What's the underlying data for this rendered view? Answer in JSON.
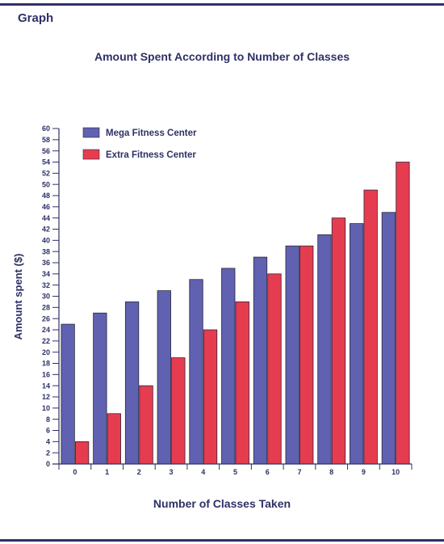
{
  "page": {
    "heading": "Graph"
  },
  "chart_data": {
    "type": "bar",
    "title": "Amount Spent According to Number of Classes",
    "xlabel": "Number of Classes Taken",
    "ylabel": "Amount spent ($)",
    "categories": [
      "0",
      "1",
      "2",
      "3",
      "4",
      "5",
      "6",
      "7",
      "8",
      "9",
      "10"
    ],
    "series": [
      {
        "name": "Mega Fitness Center",
        "color": "#6061b0",
        "values": [
          25,
          27,
          29,
          31,
          33,
          35,
          37,
          39,
          41,
          43,
          45
        ]
      },
      {
        "name": "Extra Fitness Center",
        "color": "#e63c50",
        "values": [
          4,
          9,
          14,
          19,
          24,
          29,
          34,
          39,
          44,
          49,
          54
        ]
      }
    ],
    "ylim": [
      0,
      60
    ],
    "ytick_step": 2,
    "legend": "top-left",
    "grid": false,
    "axis_color": "#2e3166"
  }
}
